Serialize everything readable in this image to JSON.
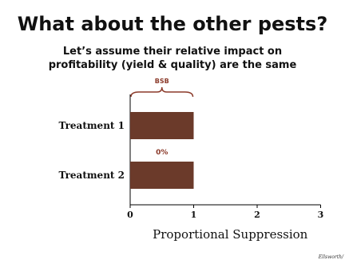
{
  "slide": {
    "title": "What about the other pests?",
    "subtitle_line1": "Let’s assume their relative impact on",
    "subtitle_line2": "profitability (yield & quality) are the same",
    "credit": "Ellsworth/",
    "colors": {
      "bar": "#6b3a2a",
      "annotation": "#8b3a2a",
      "axis": "#000000"
    }
  },
  "chart_data": {
    "type": "bar",
    "orientation": "horizontal",
    "categories": [
      "Treatment 1",
      "Treatment 2"
    ],
    "values": [
      1,
      1
    ],
    "xlabel": "Proportional Suppression",
    "xlim": [
      0,
      3
    ],
    "xticks": [
      0,
      1,
      2,
      3
    ],
    "grid": false,
    "annotations": [
      {
        "text": "BSB",
        "type": "brace",
        "span": [
          0,
          1
        ],
        "position": "above Treatment 1"
      },
      {
        "text": "0%",
        "position": "between bars"
      }
    ]
  }
}
